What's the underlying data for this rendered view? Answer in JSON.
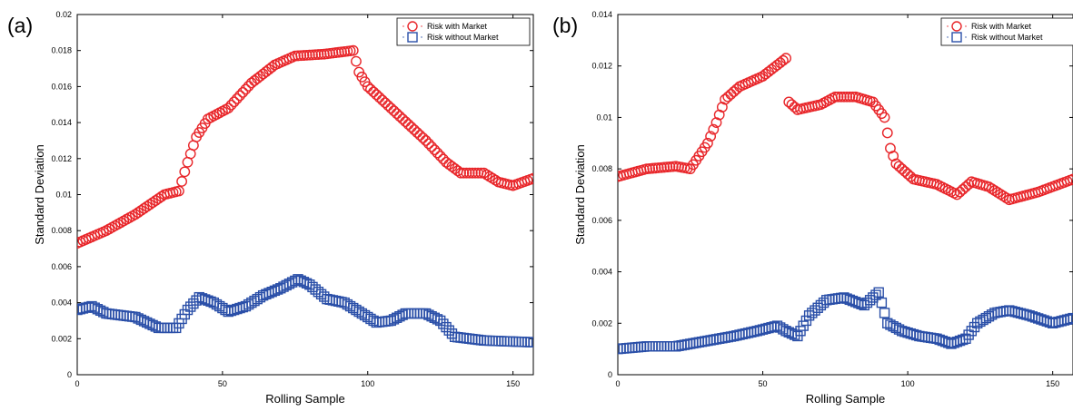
{
  "chart_data": [
    {
      "type": "scatter",
      "panel_label": "(a)",
      "xlabel": "Rolling Sample",
      "ylabel": "Standard Deviation",
      "xlim": [
        0,
        157
      ],
      "ylim": [
        0,
        0.02
      ],
      "xticks": [
        0,
        50,
        100,
        150
      ],
      "xticklabels": [
        "0",
        "50",
        "100",
        "150"
      ],
      "yticks": [
        0,
        0.002,
        0.004,
        0.006,
        0.008,
        0.01,
        0.012,
        0.014,
        0.016,
        0.018,
        0.02
      ],
      "yticklabels": [
        "0",
        "0.002",
        "0.004",
        "0.006",
        "0.008",
        "0.01",
        "0.012",
        "0.014",
        "0.016",
        "0.018",
        "0.02"
      ],
      "legend_position": "top-right",
      "grid": false,
      "series": [
        {
          "name": "Risk with Market",
          "marker": "circle",
          "color": "#e8262a",
          "knots": [
            [
              0,
              0.0073
            ],
            [
              10,
              0.008
            ],
            [
              20,
              0.0089
            ],
            [
              30,
              0.01
            ],
            [
              35,
              0.0102
            ],
            [
              38,
              0.0118
            ],
            [
              41,
              0.0132
            ],
            [
              45,
              0.0142
            ],
            [
              52,
              0.0148
            ],
            [
              60,
              0.0162
            ],
            [
              68,
              0.0172
            ],
            [
              75,
              0.0177
            ],
            [
              85,
              0.0178
            ],
            [
              95,
              0.018
            ],
            [
              97,
              0.0168
            ],
            [
              100,
              0.016
            ],
            [
              110,
              0.0145
            ],
            [
              120,
              0.013
            ],
            [
              127,
              0.0118
            ],
            [
              132,
              0.0112
            ],
            [
              140,
              0.0112
            ],
            [
              145,
              0.0107
            ],
            [
              150,
              0.0105
            ],
            [
              157,
              0.0109
            ]
          ]
        },
        {
          "name": "Risk without Market",
          "marker": "square",
          "color": "#2a4fa8",
          "knots": [
            [
              0,
              0.0036
            ],
            [
              5,
              0.0038
            ],
            [
              10,
              0.0034
            ],
            [
              20,
              0.0032
            ],
            [
              28,
              0.0026
            ],
            [
              34,
              0.0026
            ],
            [
              38,
              0.0036
            ],
            [
              42,
              0.0043
            ],
            [
              47,
              0.004
            ],
            [
              52,
              0.0035
            ],
            [
              58,
              0.0038
            ],
            [
              64,
              0.0044
            ],
            [
              70,
              0.0048
            ],
            [
              76,
              0.0053
            ],
            [
              80,
              0.005
            ],
            [
              86,
              0.0042
            ],
            [
              92,
              0.004
            ],
            [
              97,
              0.0035
            ],
            [
              103,
              0.0029
            ],
            [
              108,
              0.003
            ],
            [
              113,
              0.0034
            ],
            [
              120,
              0.0034
            ],
            [
              125,
              0.003
            ],
            [
              130,
              0.0021
            ],
            [
              140,
              0.0019
            ],
            [
              157,
              0.0018
            ]
          ]
        }
      ]
    },
    {
      "type": "scatter",
      "panel_label": "(b)",
      "xlabel": "Rolling Sample",
      "ylabel": "Standard Deviation",
      "xlim": [
        0,
        157
      ],
      "ylim": [
        0,
        0.014
      ],
      "xticks": [
        0,
        50,
        100,
        150
      ],
      "xticklabels": [
        "0",
        "50",
        "100",
        "150"
      ],
      "yticks": [
        0,
        0.002,
        0.004,
        0.006,
        0.008,
        0.01,
        0.012,
        0.014
      ],
      "yticklabels": [
        "0",
        "0.002",
        "0.004",
        "0.006",
        "0.008",
        "0.01",
        "0.012",
        "0.014"
      ],
      "legend_position": "top-right",
      "grid": false,
      "series": [
        {
          "name": "Risk with Market",
          "marker": "circle",
          "color": "#e8262a",
          "knots": [
            [
              0,
              0.0077
            ],
            [
              10,
              0.008
            ],
            [
              20,
              0.0081
            ],
            [
              25,
              0.008
            ],
            [
              28,
              0.0085
            ],
            [
              31,
              0.009
            ],
            [
              34,
              0.0098
            ],
            [
              37,
              0.0107
            ],
            [
              42,
              0.0112
            ],
            [
              50,
              0.0116
            ],
            [
              58,
              0.0123
            ],
            [
              59,
              0.0106
            ],
            [
              62,
              0.0103
            ],
            [
              70,
              0.0105
            ],
            [
              75,
              0.0108
            ],
            [
              82,
              0.0108
            ],
            [
              88,
              0.0106
            ],
            [
              92,
              0.01
            ],
            [
              94,
              0.0088
            ],
            [
              96,
              0.0082
            ],
            [
              102,
              0.0076
            ],
            [
              110,
              0.0074
            ],
            [
              117,
              0.007
            ],
            [
              122,
              0.0075
            ],
            [
              128,
              0.0073
            ],
            [
              135,
              0.0068
            ],
            [
              145,
              0.0071
            ],
            [
              157,
              0.0076
            ]
          ]
        },
        {
          "name": "Risk without Market",
          "marker": "square",
          "color": "#2a4fa8",
          "knots": [
            [
              0,
              0.001
            ],
            [
              10,
              0.0011
            ],
            [
              20,
              0.0011
            ],
            [
              30,
              0.0013
            ],
            [
              40,
              0.0015
            ],
            [
              48,
              0.0017
            ],
            [
              55,
              0.0019
            ],
            [
              58,
              0.0017
            ],
            [
              62,
              0.0015
            ],
            [
              66,
              0.0023
            ],
            [
              72,
              0.0029
            ],
            [
              78,
              0.003
            ],
            [
              85,
              0.0027
            ],
            [
              90,
              0.0032
            ],
            [
              93,
              0.002
            ],
            [
              98,
              0.0017
            ],
            [
              104,
              0.0015
            ],
            [
              110,
              0.0014
            ],
            [
              115,
              0.0012
            ],
            [
              120,
              0.0014
            ],
            [
              124,
              0.002
            ],
            [
              130,
              0.0024
            ],
            [
              135,
              0.0025
            ],
            [
              142,
              0.0023
            ],
            [
              150,
              0.002
            ],
            [
              157,
              0.0022
            ]
          ]
        }
      ]
    }
  ]
}
